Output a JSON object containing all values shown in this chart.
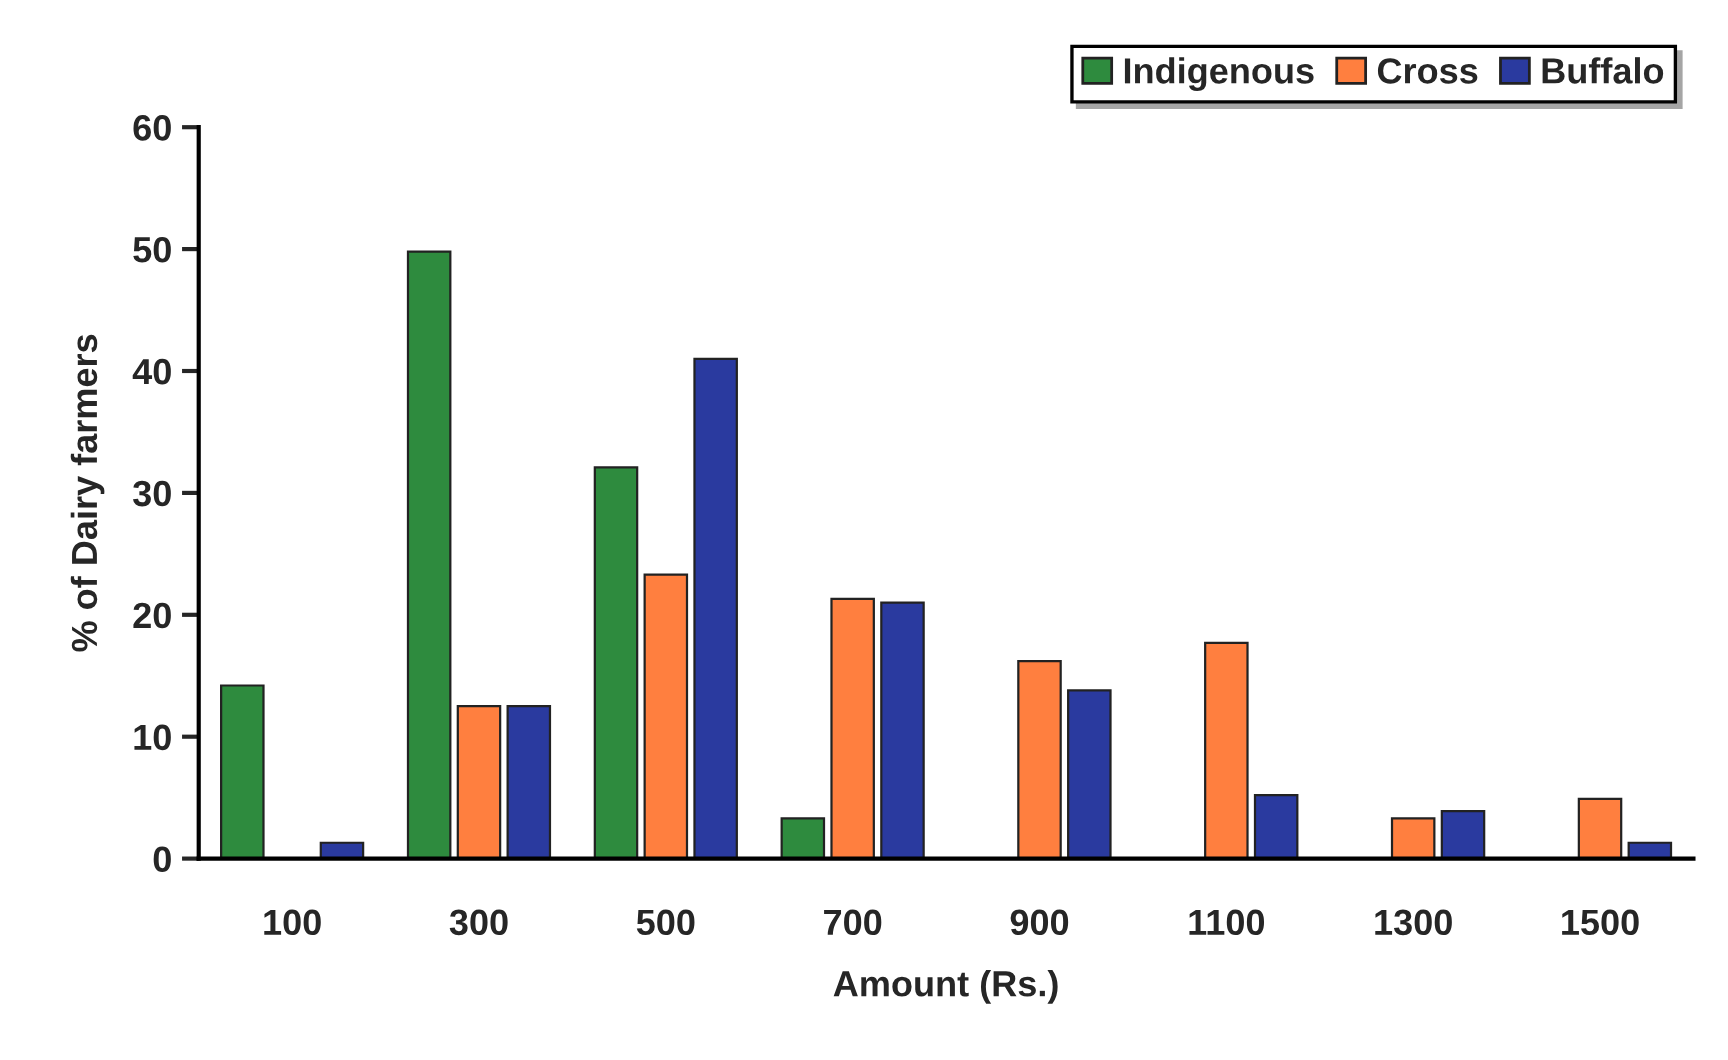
{
  "chart_data": {
    "type": "bar",
    "xlabel": "Amount (Rs.)",
    "ylabel": "% of Dairy farmers",
    "categories": [
      "100",
      "300",
      "500",
      "700",
      "900",
      "1100",
      "1300",
      "1500"
    ],
    "series": [
      {
        "name": "Indigenous",
        "color": "#2e8b3e",
        "values": [
          14.2,
          49.8,
          32.1,
          3.3,
          null,
          null,
          null,
          null
        ]
      },
      {
        "name": "Cross",
        "color": "#ff7f3f",
        "values": [
          null,
          12.5,
          23.3,
          21.3,
          16.2,
          17.7,
          3.3,
          4.9
        ]
      },
      {
        "name": "Buffalo",
        "color": "#2a3a9f",
        "values": [
          1.3,
          12.5,
          41,
          21,
          13.8,
          5.2,
          3.9,
          1.3
        ]
      }
    ],
    "ylim": [
      0,
      60
    ],
    "yticks": [
      0,
      10,
      20,
      30,
      40,
      50,
      60
    ],
    "grid": false,
    "legend": "top right"
  }
}
